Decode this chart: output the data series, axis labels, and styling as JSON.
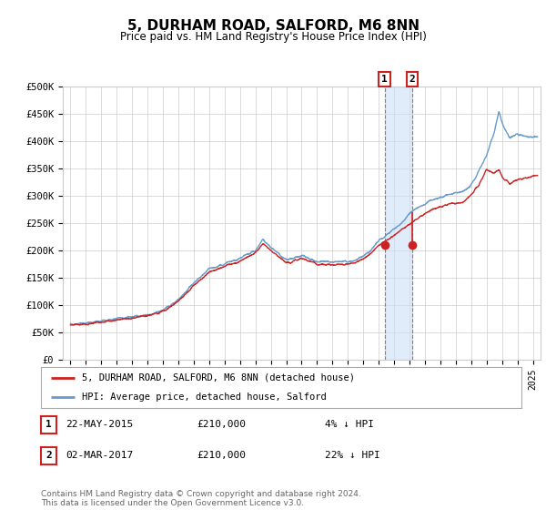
{
  "title": "5, DURHAM ROAD, SALFORD, M6 8NN",
  "subtitle": "Price paid vs. HM Land Registry's House Price Index (HPI)",
  "ylim": [
    0,
    500000
  ],
  "yticks": [
    0,
    50000,
    100000,
    150000,
    200000,
    250000,
    300000,
    350000,
    400000,
    450000,
    500000
  ],
  "ytick_labels": [
    "£0",
    "£50K",
    "£100K",
    "£150K",
    "£200K",
    "£250K",
    "£300K",
    "£350K",
    "£400K",
    "£450K",
    "£500K"
  ],
  "hpi_color": "#6699cc",
  "price_color": "#cc2222",
  "background_color": "#ffffff",
  "grid_color": "#cccccc",
  "sale1_date": 2015.38,
  "sale1_price": 210000,
  "sale1_hpi": 218000,
  "sale2_date": 2017.16,
  "sale2_price": 210000,
  "sale2_hpi": 268000,
  "legend_price_label": "5, DURHAM ROAD, SALFORD, M6 8NN (detached house)",
  "legend_hpi_label": "HPI: Average price, detached house, Salford",
  "annot1_date_str": "22-MAY-2015",
  "annot1_amount": "£210,000",
  "annot1_pct": "4% ↓ HPI",
  "annot2_date_str": "02-MAR-2017",
  "annot2_amount": "£210,000",
  "annot2_pct": "22% ↓ HPI",
  "footer": "Contains HM Land Registry data © Crown copyright and database right 2024.\nThis data is licensed under the Open Government Licence v3.0.",
  "xlim_start": 1994.5,
  "xlim_end": 2025.5,
  "hpi_waypoints_x": [
    1995.0,
    1996.0,
    1997.0,
    1998.0,
    1999.0,
    2000.0,
    2001.0,
    2002.0,
    2003.0,
    2004.0,
    2005.0,
    2006.0,
    2007.0,
    2007.5,
    2008.0,
    2008.5,
    2009.0,
    2009.5,
    2010.0,
    2010.5,
    2011.0,
    2012.0,
    2013.0,
    2013.5,
    2014.0,
    2014.5,
    2015.0,
    2015.5,
    2016.0,
    2016.5,
    2017.0,
    2017.5,
    2018.0,
    2018.5,
    2019.0,
    2019.5,
    2020.0,
    2020.5,
    2021.0,
    2021.5,
    2022.0,
    2022.5,
    2022.8,
    2023.0,
    2023.5,
    2024.0,
    2024.5,
    2025.3
  ],
  "hpi_waypoints_y": [
    65000,
    67000,
    70000,
    75000,
    78000,
    82000,
    90000,
    110000,
    140000,
    165000,
    175000,
    185000,
    200000,
    220000,
    205000,
    195000,
    182000,
    185000,
    190000,
    185000,
    180000,
    178000,
    180000,
    182000,
    190000,
    200000,
    218000,
    228000,
    240000,
    250000,
    268000,
    278000,
    285000,
    292000,
    298000,
    302000,
    305000,
    308000,
    320000,
    345000,
    375000,
    415000,
    455000,
    435000,
    405000,
    415000,
    408000,
    408000
  ],
  "price_waypoints_x": [
    1995.0,
    1996.0,
    1997.0,
    1998.0,
    1999.0,
    2000.0,
    2001.0,
    2002.0,
    2003.0,
    2004.0,
    2005.0,
    2006.0,
    2007.0,
    2007.5,
    2008.0,
    2008.5,
    2009.0,
    2009.5,
    2010.0,
    2010.5,
    2011.0,
    2012.0,
    2013.0,
    2013.5,
    2014.0,
    2014.5,
    2015.0,
    2015.5,
    2016.0,
    2016.5,
    2017.0,
    2017.5,
    2018.0,
    2018.5,
    2019.0,
    2019.5,
    2020.0,
    2020.5,
    2021.0,
    2021.5,
    2022.0,
    2022.5,
    2022.8,
    2023.0,
    2023.5,
    2024.0,
    2024.5,
    2025.3
  ],
  "price_waypoints_y": [
    63000,
    65000,
    68000,
    73000,
    76000,
    80000,
    88000,
    107000,
    136000,
    160000,
    170000,
    180000,
    196000,
    213000,
    200000,
    188000,
    177000,
    180000,
    185000,
    180000,
    175000,
    173000,
    175000,
    177000,
    185000,
    195000,
    210000,
    218000,
    228000,
    238000,
    248000,
    258000,
    268000,
    275000,
    280000,
    284000,
    286000,
    288000,
    302000,
    320000,
    348000,
    342000,
    348000,
    335000,
    322000,
    330000,
    332000,
    338000
  ]
}
